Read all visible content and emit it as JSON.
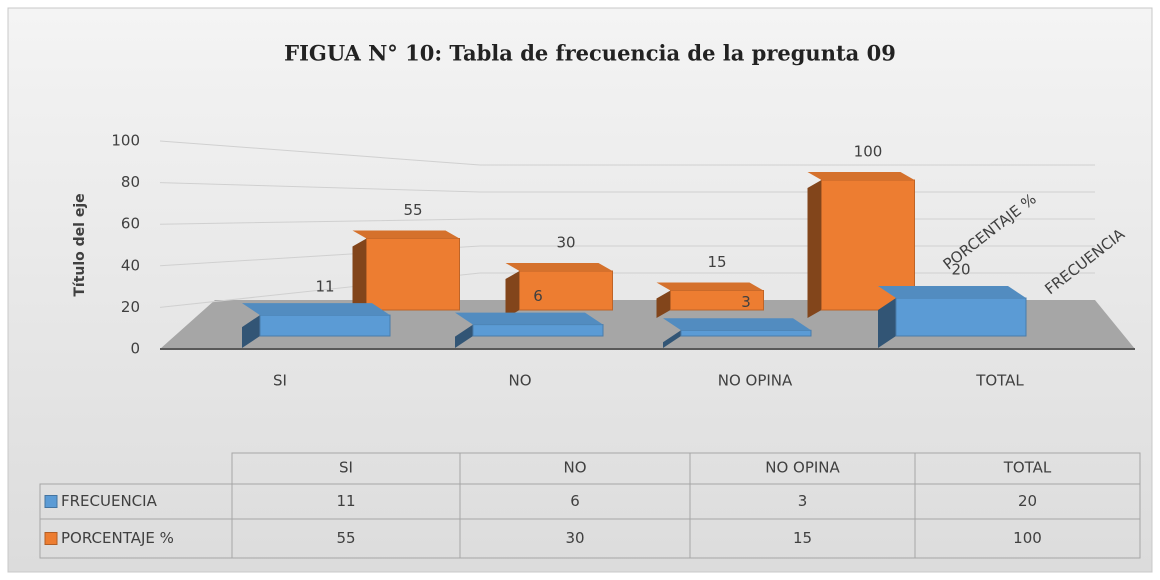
{
  "chart_data": {
    "type": "bar3d",
    "title": "FIGUA N° 10: Tabla de frecuencia de la pregunta 09",
    "y_axis_label": "Título del eje",
    "categories": [
      "SI",
      "NO",
      "NO OPINA",
      "TOTAL"
    ],
    "series": [
      {
        "name": "FRECUENCIA",
        "color": "#5b9bd5",
        "values": [
          11,
          6,
          3,
          20
        ]
      },
      {
        "name": "PORCENTAJE %",
        "color": "#ed7d31",
        "values": [
          55,
          30,
          15,
          100
        ]
      }
    ],
    "ylim": [
      0,
      100
    ],
    "yticks": [
      0,
      20,
      40,
      60,
      80,
      100
    ],
    "grid": true,
    "data_table": true
  }
}
